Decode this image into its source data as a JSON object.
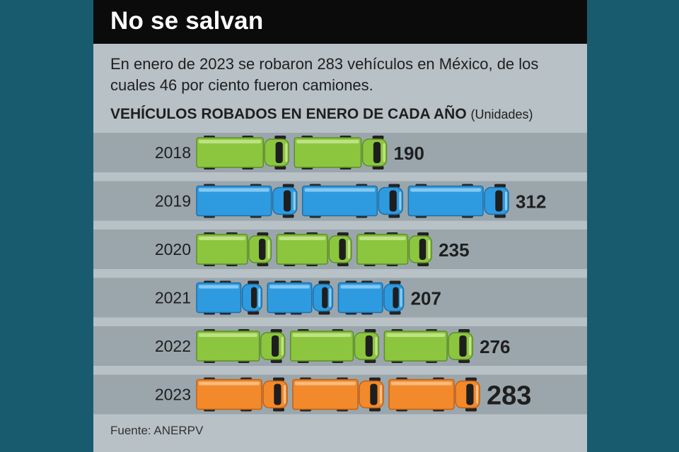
{
  "header": {
    "title": "No se salvan"
  },
  "subtitle": "En enero de 2023 se robaron 283 vehículos en México, de los cuales 46 por ciento fueron camiones.",
  "chart_heading": {
    "main": "VEHÍCULOS ROBADOS EN ENERO DE CADA AÑO",
    "unit": "(Unidades)"
  },
  "source": "Fuente: ANERPV",
  "colors": {
    "green": "#8cc63f",
    "blue": "#2e9be0",
    "orange": "#f28a2b",
    "stripe": "#9aa6ac",
    "background": "#b7c1c6",
    "header": "#0b0b0b"
  },
  "chart_data": {
    "type": "bar",
    "title": "VEHÍCULOS ROBADOS EN ENERO DE CADA AÑO",
    "ylabel": "(Unidades)",
    "orientation": "horizontal",
    "categories": [
      "2018",
      "2019",
      "2020",
      "2021",
      "2022",
      "2023"
    ],
    "values": [
      190,
      312,
      235,
      207,
      276,
      283
    ],
    "value_labels": [
      "190",
      "312",
      "235",
      "207",
      "276",
      "283"
    ],
    "bar_colors": [
      "green",
      "blue",
      "green",
      "blue",
      "green",
      "orange"
    ],
    "bar_icon": "truck-icon",
    "grid": false
  }
}
